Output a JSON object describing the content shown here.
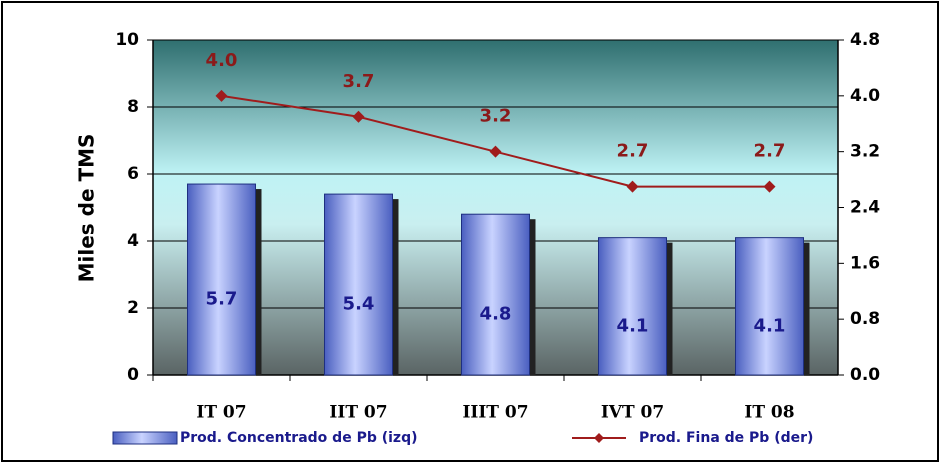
{
  "chart_data": {
    "type": "bar",
    "y_axis_label": "Miles de TMS",
    "categories": [
      "IT 07",
      "IIT 07",
      "IIIT 07",
      "IVT 07",
      "IT 08"
    ],
    "series": [
      {
        "name": "Prod. Concentrado de Pb (izq)",
        "type": "bar",
        "color": "#6f86e0",
        "values": [
          5.7,
          5.4,
          4.8,
          4.1,
          4.1
        ]
      },
      {
        "name": "Prod. Fina de Pb (der)",
        "type": "line",
        "axis": "y2",
        "color": "#a01c1c",
        "values": [
          4.0,
          3.7,
          3.2,
          2.7,
          2.7
        ],
        "value_labels": [
          "4.0",
          "3.7",
          "3.2",
          "2.7",
          "2.7"
        ]
      }
    ],
    "ylim": [
      0,
      10
    ],
    "yticks": [
      0,
      2,
      4,
      6,
      8,
      10
    ],
    "y2lim": [
      0,
      4.8
    ],
    "y2ticks": [
      {
        "value": 0,
        "label": "0.0"
      },
      0.8,
      1.6,
      2.4,
      3.2,
      {
        "value": 4,
        "label": "4.0"
      },
      4.8
    ]
  }
}
